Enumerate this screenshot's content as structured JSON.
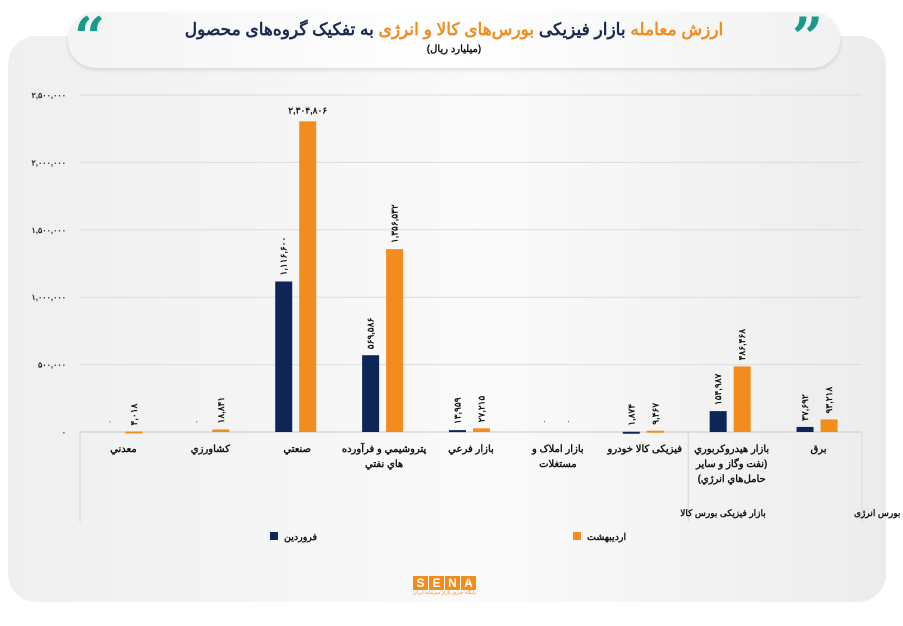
{
  "header": {
    "title_part1": "ارزش معامله",
    "title_part2": " بازار فیزیکی ",
    "title_part3": "بورس‌های کالا و انرژی",
    "title_part4": " به تفکیک گروه‌های محصول",
    "subtitle": "(میلیارد ریال)"
  },
  "logo": {
    "text": "SENA",
    "subtext": "پایگاه خبری بازار سرمایه ایران"
  },
  "colors": {
    "farvardin": "#0e2558",
    "ordibehesht": "#f28c1c",
    "accent": "#1a9a8a"
  },
  "chart_data": {
    "type": "bar",
    "title": "ارزش معامله بازار فیزیکی بورس‌های کالا و انرژی به تفکیک گروه‌های محصول",
    "ylabel": "میلیارد ریال",
    "ylim": [
      0,
      2500000
    ],
    "yticks": [
      0,
      500000,
      1000000,
      1500000,
      2000000,
      2500000
    ],
    "ytick_labels": [
      "۰",
      "۵۰۰,۰۰۰",
      "۱,۰۰۰,۰۰۰",
      "۱,۵۰۰,۰۰۰",
      "۲,۰۰۰,۰۰۰",
      "۲,۵۰۰,۰۰۰"
    ],
    "grid": true,
    "legend_placement": "bottom",
    "categories": [
      [
        "معدني"
      ],
      [
        "کشاورزي"
      ],
      [
        "صنعتي"
      ],
      [
        "پتروشيمي و فرآورده",
        "هاي نفتي"
      ],
      [
        "بازار فرعي"
      ],
      [
        "بازار املاک و",
        "مستغلات"
      ],
      [
        "فیزیکی کالا خودرو"
      ],
      [
        "بازار هيدروکربوري",
        "(نفت وگاز و ساير",
        "حامل‌هاي انرژي)"
      ],
      [
        "برق"
      ]
    ],
    "groups": [
      {
        "label": "بازار فیزیکی بورس کالا",
        "count": 7
      },
      {
        "label": "بازار فیزیکی بورس انرژی",
        "count": 2
      }
    ],
    "series": [
      {
        "name": "فروردین",
        "values": [
          0,
          0,
          1116600,
          569586,
          13959,
          0,
          1874,
          154987,
          37692
        ],
        "labels": [
          "۰",
          "۰",
          "۱,۱۱۶,۶۰۰",
          "۵۶۹,۵۸۶",
          "۱۳,۹۵۹",
          "۰",
          "۱,۸۷۴",
          "۱۵۴,۹۸۷",
          "۳۷,۶۹۲"
        ]
      },
      {
        "name": "اردیبهشت",
        "values": [
          4018,
          18841,
          2304806,
          1356532,
          27215,
          0,
          9467,
          486468,
          93218
        ],
        "labels": [
          "۴,۰۱۸",
          "۱۸,۸۴۱",
          "۲,۳۰۴,۸۰۶",
          "۱,۳۵۶,۵۳۲",
          "۲۷,۲۱۵",
          "۰",
          "۹,۴۶۷",
          "۴۸۶,۴۶۸",
          "۹۳,۲۱۸"
        ]
      }
    ]
  }
}
